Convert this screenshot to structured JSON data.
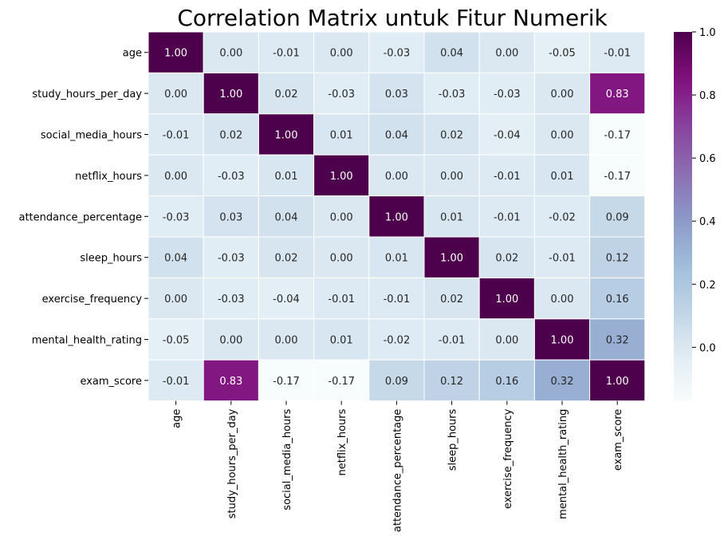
{
  "chart_data": {
    "type": "heatmap",
    "title": "Correlation Matrix untuk Fitur Numerik",
    "xlabel": "",
    "ylabel": "",
    "rows": [
      "age",
      "study_hours_per_day",
      "social_media_hours",
      "netflix_hours",
      "attendance_percentage",
      "sleep_hours",
      "exercise_frequency",
      "mental_health_rating",
      "exam_score"
    ],
    "columns": [
      "age",
      "study_hours_per_day",
      "social_media_hours",
      "netflix_hours",
      "attendance_percentage",
      "sleep_hours",
      "exercise_frequency",
      "mental_health_rating",
      "exam_score"
    ],
    "values": [
      [
        1.0,
        0.0,
        -0.01,
        -0.0,
        -0.03,
        0.04,
        -0.0,
        -0.05,
        -0.01
      ],
      [
        0.0,
        1.0,
        0.02,
        -0.03,
        0.03,
        -0.03,
        -0.03,
        -0.0,
        0.83
      ],
      [
        -0.01,
        0.02,
        1.0,
        0.01,
        0.04,
        0.02,
        -0.04,
        0.0,
        -0.17
      ],
      [
        -0.0,
        -0.03,
        0.01,
        1.0,
        -0.0,
        -0.0,
        -0.01,
        0.01,
        -0.17
      ],
      [
        -0.03,
        0.03,
        0.04,
        -0.0,
        1.0,
        0.01,
        -0.01,
        -0.02,
        0.09
      ],
      [
        0.04,
        -0.03,
        0.02,
        -0.0,
        0.01,
        1.0,
        0.02,
        -0.01,
        0.12
      ],
      [
        -0.0,
        -0.03,
        -0.04,
        -0.01,
        -0.01,
        0.02,
        1.0,
        -0.0,
        0.16
      ],
      [
        -0.05,
        -0.0,
        0.0,
        0.01,
        -0.02,
        -0.01,
        -0.0,
        1.0,
        0.32
      ],
      [
        -0.01,
        0.83,
        -0.17,
        -0.17,
        0.09,
        0.12,
        0.16,
        0.32,
        1.0
      ]
    ],
    "value_format": "0.00",
    "colormap": "BuPu",
    "color_range": [
      -0.17,
      1.0
    ],
    "colorbar_ticks": [
      "0.0",
      "0.2",
      "0.4",
      "0.6",
      "0.8",
      "1.0"
    ],
    "colorbar_tick_values": [
      0.0,
      0.2,
      0.4,
      0.6,
      0.8,
      1.0
    ],
    "grid_lines": "white",
    "legend": "colorbar-right"
  }
}
